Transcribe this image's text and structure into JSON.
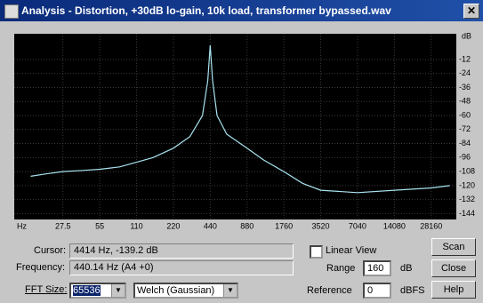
{
  "window": {
    "title": "Analysis - Distortion, +30dB lo-gain, 10k load, transformer bypassed.wav"
  },
  "chart_data": {
    "type": "line",
    "xlabel": "Hz",
    "ylabel": "dB",
    "log_x": true,
    "grid": true,
    "x": [
      15,
      20,
      27.5,
      40,
      55,
      80,
      110,
      150,
      220,
      300,
      380,
      420,
      440,
      460,
      500,
      600,
      880,
      1200,
      1760,
      2500,
      3520,
      7040,
      14080,
      28160,
      40000
    ],
    "series": [
      {
        "color": "#a8e4f0",
        "values": [
          -112,
          -110,
          -108,
          -107,
          -106,
          -104,
          -100,
          -96,
          -88,
          -78,
          -60,
          -30,
          0,
          -30,
          -60,
          -76,
          -88,
          -98,
          -108,
          -118,
          -124,
          -126,
          -124,
          -122,
          -120
        ]
      }
    ],
    "xlim": [
      11,
      45200
    ],
    "ylim": [
      -149,
      10
    ],
    "xticks": [
      27.5,
      55,
      110,
      220,
      440,
      880,
      1760,
      3520,
      7040,
      14080,
      28160
    ],
    "yticks": [
      -12,
      -24,
      -36,
      -48,
      -60,
      -72,
      -84,
      -96,
      -108,
      -120,
      -132,
      -144
    ]
  },
  "controls": {
    "cursor_label": "Cursor:",
    "cursor_value": "4414 Hz, -139.2 dB",
    "frequency_label": "Frequency:",
    "frequency_value": "440.14 Hz (A4 +0)",
    "fft_size_label": "FFT Size:",
    "fft_size": 65536,
    "window_function": "Welch (Gaussian)",
    "linear_view": "Linear View",
    "range_label": "Range",
    "range": 160,
    "range_unit": "dB",
    "reference_label": "Reference",
    "reference": 0,
    "reference_unit": "dBFS",
    "buttons": [
      "Scan",
      "Close",
      "Help"
    ]
  }
}
